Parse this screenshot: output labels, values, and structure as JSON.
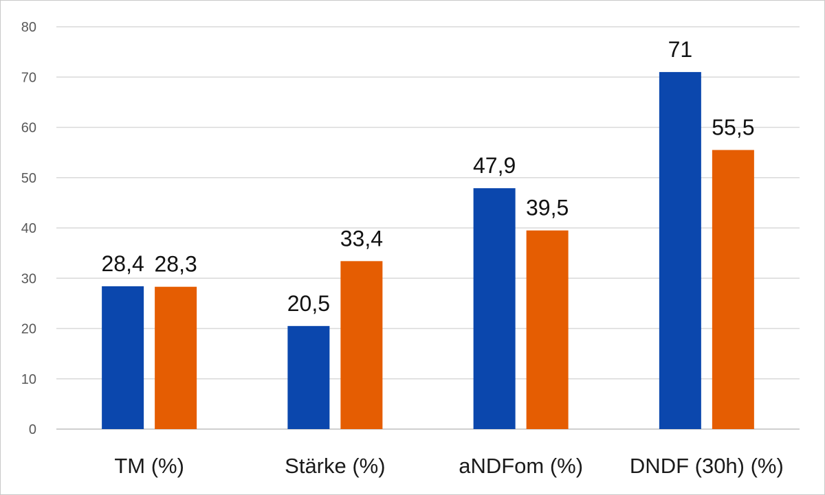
{
  "chart_data": {
    "type": "bar",
    "categories": [
      "TM (%)",
      "Stärke (%)",
      "aNDFom (%)",
      "DNDF (30h) (%)"
    ],
    "series": [
      {
        "color": "#0b47ad",
        "values": [
          28.4,
          20.5,
          47.9,
          71
        ],
        "labels": [
          "28,4",
          "20,5",
          "47,9",
          "71"
        ]
      },
      {
        "color": "#e55d02",
        "values": [
          28.3,
          33.4,
          39.5,
          55.5
        ],
        "labels": [
          "28,3",
          "33,4",
          "39,5",
          "55,5"
        ]
      }
    ],
    "ylim": [
      0,
      80
    ],
    "yticks": [
      0,
      10,
      20,
      30,
      40,
      50,
      60,
      70,
      80
    ],
    "title": "",
    "xlabel": "",
    "ylabel": "",
    "grid": true,
    "legend": "none"
  }
}
